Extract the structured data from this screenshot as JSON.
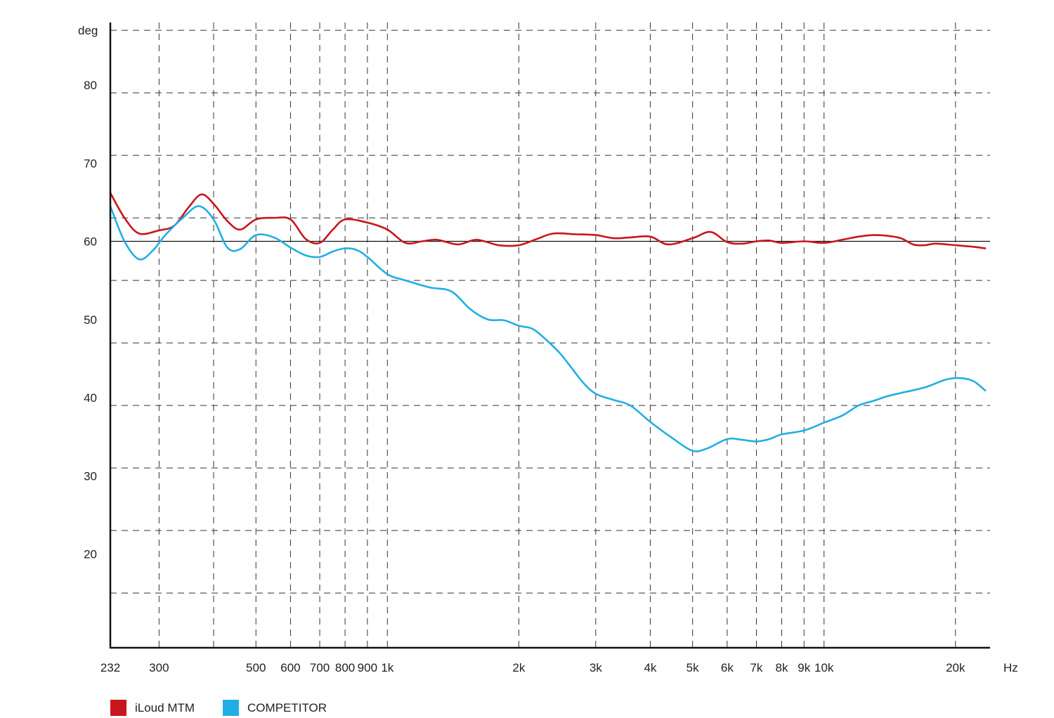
{
  "chart_data": {
    "type": "line",
    "xscale": "log",
    "xlabel": "Hz",
    "ylabel": "deg",
    "xlim": [
      232,
      24000
    ],
    "ylim": [
      8,
      88
    ],
    "grid": true,
    "legend_position": "bottom-left",
    "reference_line": 60,
    "x_ticks": [
      {
        "value": 232,
        "label": "232"
      },
      {
        "value": 300,
        "label": "300"
      },
      {
        "value": 400,
        "label": ""
      },
      {
        "value": 500,
        "label": "500"
      },
      {
        "value": 600,
        "label": "600"
      },
      {
        "value": 700,
        "label": "700"
      },
      {
        "value": 800,
        "label": "800"
      },
      {
        "value": 900,
        "label": "900"
      },
      {
        "value": 1000,
        "label": "1k"
      },
      {
        "value": 2000,
        "label": "2k"
      },
      {
        "value": 3000,
        "label": "3k"
      },
      {
        "value": 4000,
        "label": "4k"
      },
      {
        "value": 5000,
        "label": "5k"
      },
      {
        "value": 6000,
        "label": "6k"
      },
      {
        "value": 7000,
        "label": "7k"
      },
      {
        "value": 8000,
        "label": "8k"
      },
      {
        "value": 9000,
        "label": "9k"
      },
      {
        "value": 10000,
        "label": "10k"
      },
      {
        "value": 20000,
        "label": "20k"
      }
    ],
    "y_gridlines": [
      15,
      23,
      31,
      39,
      47,
      55,
      63,
      71,
      79,
      87
    ],
    "y_tick_labels": [
      {
        "value": 80,
        "label": "80"
      },
      {
        "value": 70,
        "label": "70"
      },
      {
        "value": 60,
        "label": "60"
      },
      {
        "value": 50,
        "label": "50"
      },
      {
        "value": 40,
        "label": "40"
      },
      {
        "value": 30,
        "label": "30"
      },
      {
        "value": 20,
        "label": "20"
      }
    ],
    "series": [
      {
        "name": "iLoud MTM",
        "color": "#c8161d",
        "points": [
          [
            232,
            66.2
          ],
          [
            250,
            63.0
          ],
          [
            270,
            61.0
          ],
          [
            300,
            61.4
          ],
          [
            325,
            62.0
          ],
          [
            350,
            64.3
          ],
          [
            375,
            66.0
          ],
          [
            400,
            64.8
          ],
          [
            430,
            62.6
          ],
          [
            460,
            61.5
          ],
          [
            500,
            62.8
          ],
          [
            550,
            63.0
          ],
          [
            600,
            62.8
          ],
          [
            650,
            60.3
          ],
          [
            700,
            59.8
          ],
          [
            750,
            61.5
          ],
          [
            800,
            62.8
          ],
          [
            900,
            62.4
          ],
          [
            1000,
            61.5
          ],
          [
            1100,
            59.8
          ],
          [
            1200,
            60.0
          ],
          [
            1300,
            60.2
          ],
          [
            1450,
            59.6
          ],
          [
            1600,
            60.2
          ],
          [
            1800,
            59.5
          ],
          [
            2000,
            59.5
          ],
          [
            2200,
            60.3
          ],
          [
            2400,
            61.0
          ],
          [
            2700,
            60.9
          ],
          [
            3000,
            60.8
          ],
          [
            3300,
            60.4
          ],
          [
            3600,
            60.5
          ],
          [
            4000,
            60.6
          ],
          [
            4400,
            59.6
          ],
          [
            5000,
            60.4
          ],
          [
            5500,
            61.2
          ],
          [
            6000,
            59.9
          ],
          [
            6500,
            59.7
          ],
          [
            7000,
            60.0
          ],
          [
            7500,
            60.1
          ],
          [
            8000,
            59.8
          ],
          [
            9000,
            60.0
          ],
          [
            10000,
            59.8
          ],
          [
            11000,
            60.2
          ],
          [
            12000,
            60.6
          ],
          [
            13000,
            60.8
          ],
          [
            14000,
            60.7
          ],
          [
            15000,
            60.4
          ],
          [
            16000,
            59.6
          ],
          [
            17000,
            59.5
          ],
          [
            18000,
            59.7
          ],
          [
            20000,
            59.5
          ],
          [
            22000,
            59.3
          ],
          [
            23400,
            59.1
          ]
        ]
      },
      {
        "name": "COMPETITOR",
        "color": "#22aee4",
        "points": [
          [
            232,
            64.5
          ],
          [
            250,
            60.0
          ],
          [
            270,
            57.7
          ],
          [
            290,
            58.8
          ],
          [
            310,
            60.8
          ],
          [
            340,
            63.0
          ],
          [
            370,
            64.5
          ],
          [
            400,
            62.8
          ],
          [
            430,
            59.2
          ],
          [
            460,
            59.0
          ],
          [
            500,
            60.8
          ],
          [
            550,
            60.5
          ],
          [
            600,
            59.2
          ],
          [
            650,
            58.2
          ],
          [
            700,
            58.0
          ],
          [
            750,
            58.7
          ],
          [
            800,
            59.1
          ],
          [
            850,
            58.9
          ],
          [
            900,
            58.0
          ],
          [
            1000,
            55.8
          ],
          [
            1100,
            55.0
          ],
          [
            1250,
            54.1
          ],
          [
            1400,
            53.6
          ],
          [
            1550,
            51.3
          ],
          [
            1700,
            50.0
          ],
          [
            1850,
            49.9
          ],
          [
            2000,
            49.2
          ],
          [
            2150,
            48.8
          ],
          [
            2300,
            47.5
          ],
          [
            2500,
            45.5
          ],
          [
            2800,
            42.0
          ],
          [
            3000,
            40.5
          ],
          [
            3300,
            39.7
          ],
          [
            3600,
            39.0
          ],
          [
            4000,
            36.9
          ],
          [
            4500,
            34.8
          ],
          [
            5000,
            33.2
          ],
          [
            5400,
            33.5
          ],
          [
            6000,
            34.7
          ],
          [
            6500,
            34.6
          ],
          [
            7000,
            34.4
          ],
          [
            7500,
            34.7
          ],
          [
            8000,
            35.3
          ],
          [
            9000,
            35.8
          ],
          [
            10000,
            36.8
          ],
          [
            11000,
            37.7
          ],
          [
            12000,
            39.0
          ],
          [
            13000,
            39.6
          ],
          [
            14000,
            40.2
          ],
          [
            15000,
            40.6
          ],
          [
            17000,
            41.3
          ],
          [
            19000,
            42.3
          ],
          [
            20500,
            42.5
          ],
          [
            22000,
            42.1
          ],
          [
            23400,
            40.9
          ]
        ]
      }
    ]
  },
  "legend": {
    "items": [
      {
        "label": "iLoud MTM",
        "color": "#c8161d"
      },
      {
        "label": "COMPETITOR",
        "color": "#22aee4"
      }
    ]
  }
}
